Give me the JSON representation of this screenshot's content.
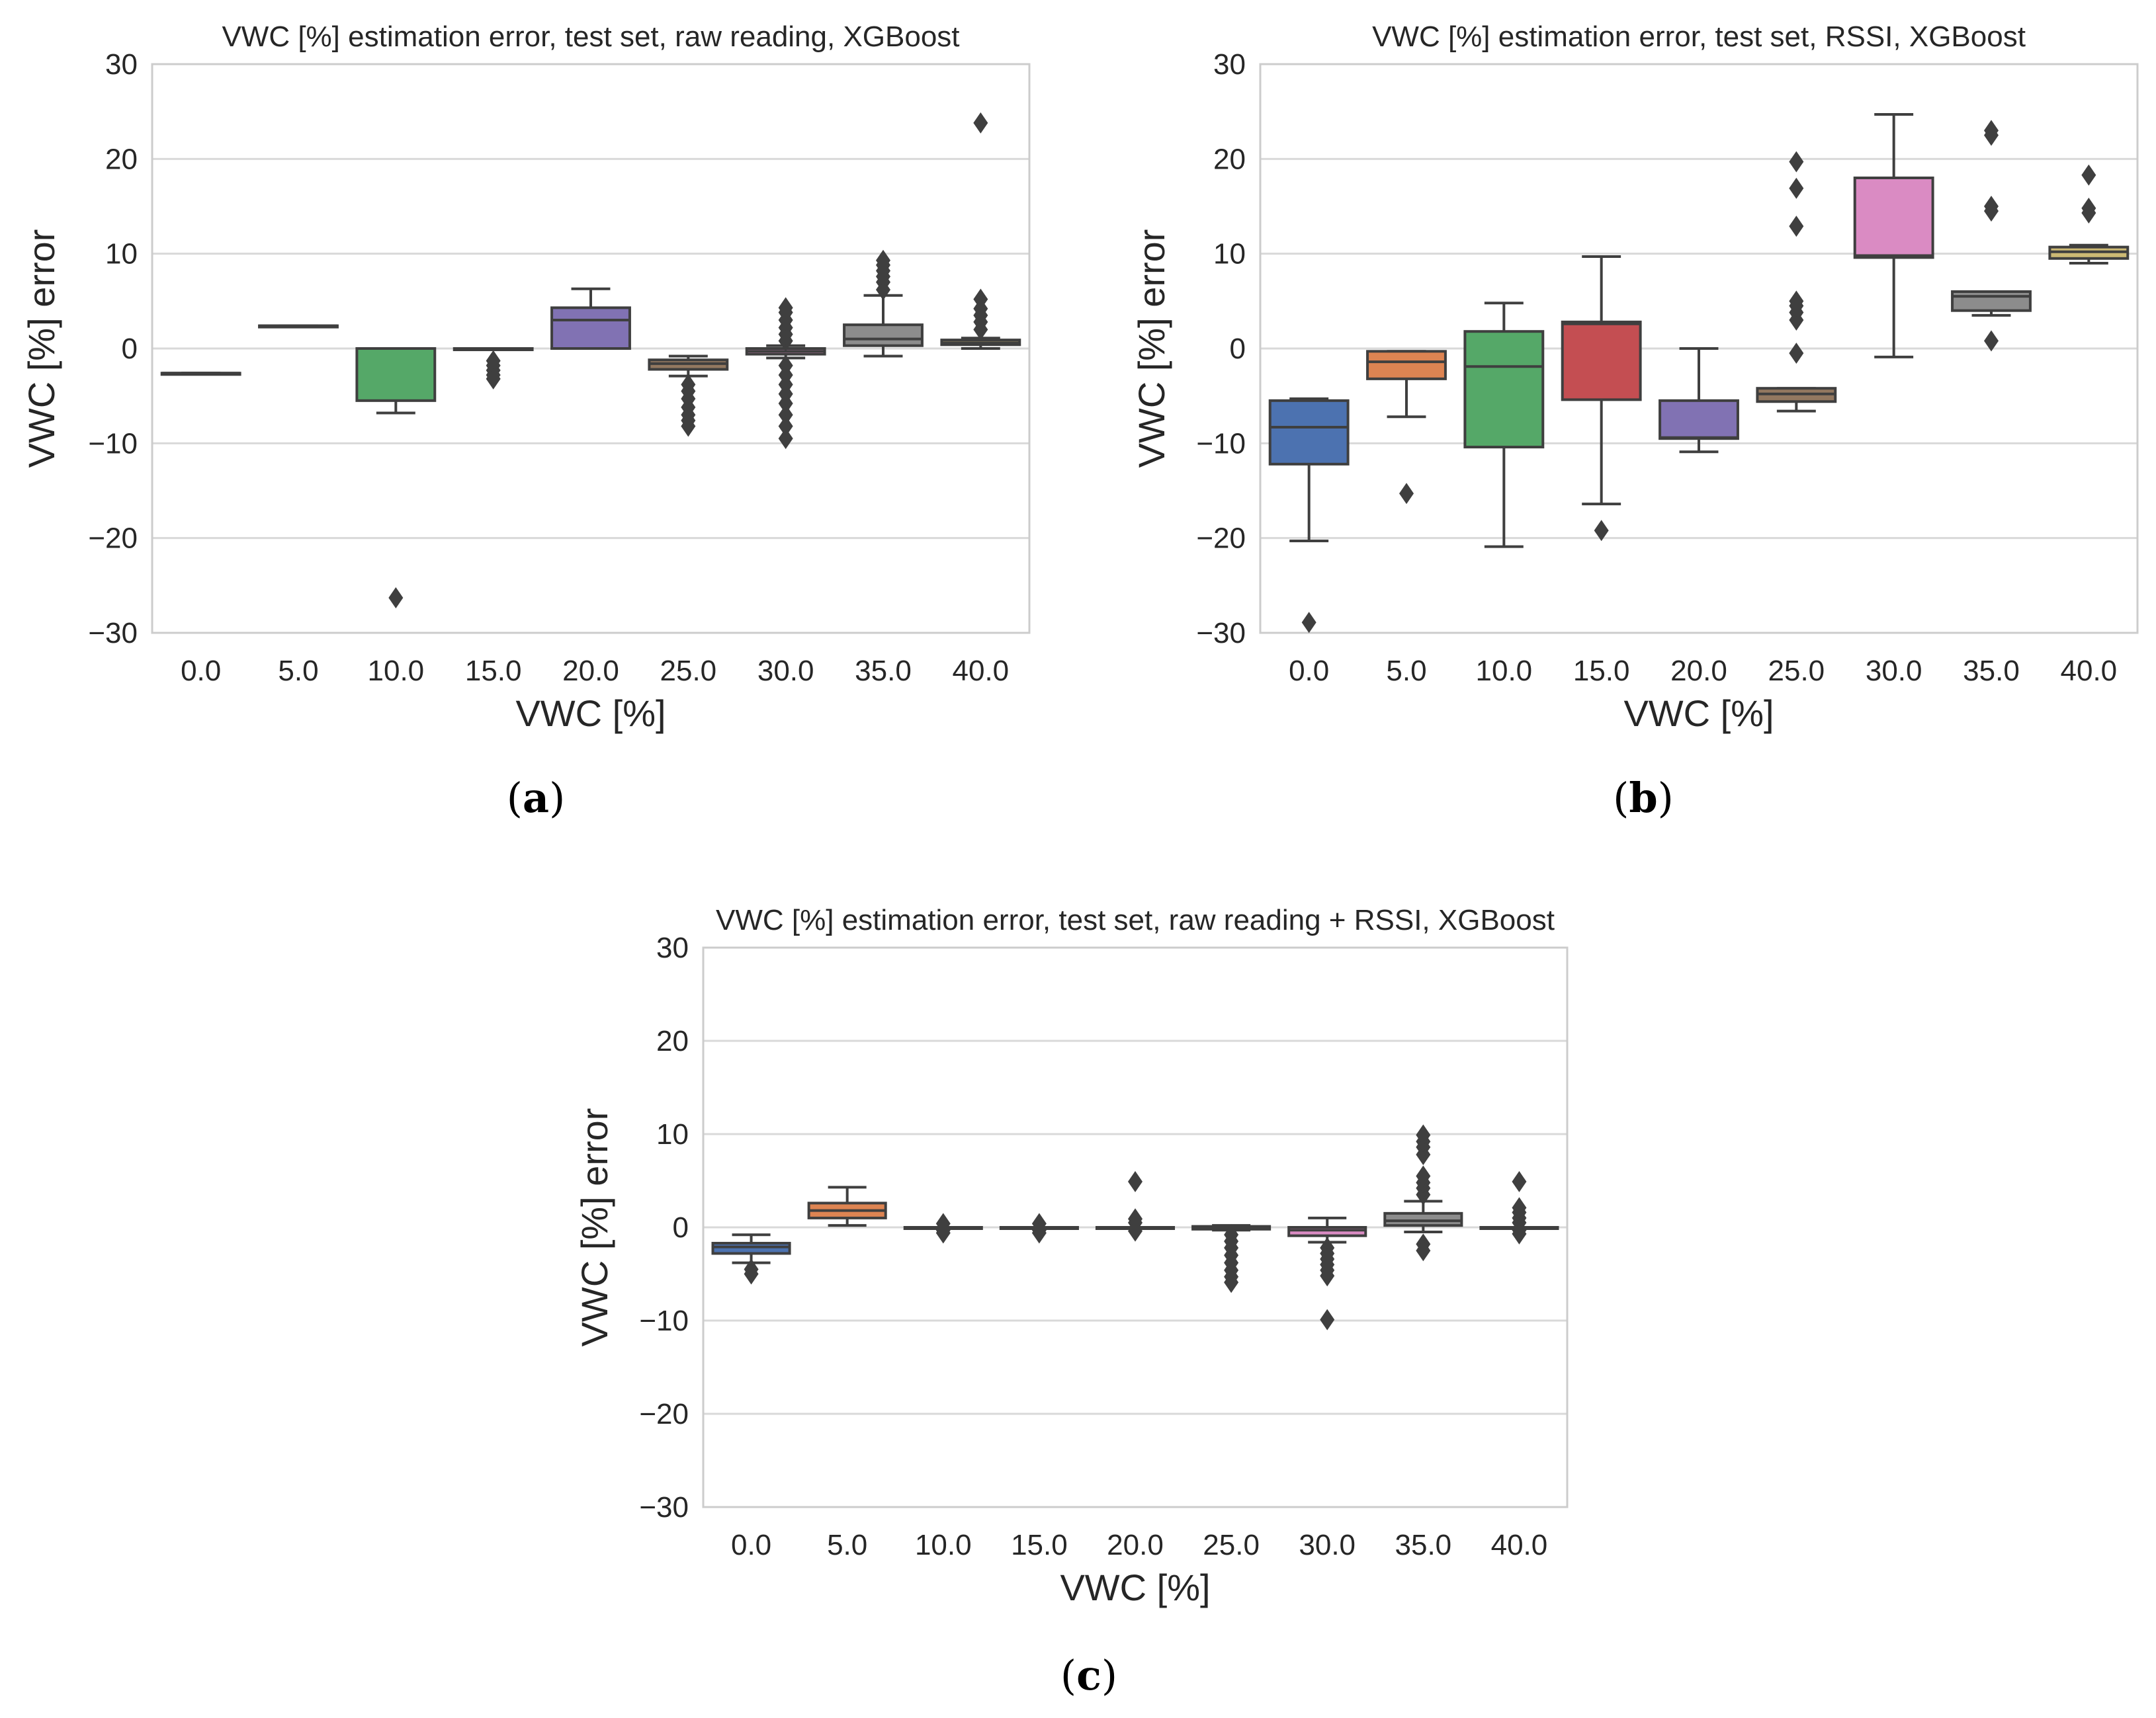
{
  "colors": {
    "palette": [
      "#4C72B0",
      "#DD8452",
      "#55A868",
      "#C44E52",
      "#8172B3",
      "#937860",
      "#DA8BC3",
      "#8C8C8C",
      "#CCB974"
    ],
    "line": "#3f3f3f",
    "grid": "#d9d9d9",
    "frame": "#cccccc"
  },
  "chart_data": [
    {
      "id": "a",
      "type": "box",
      "caption_letter": "a",
      "title": "VWC [%] estimation error, test set, raw reading, XGBoost",
      "xlabel": "VWC [%]",
      "ylabel": "VWC [%] error",
      "categories": [
        "0.0",
        "5.0",
        "10.0",
        "15.0",
        "20.0",
        "25.0",
        "30.0",
        "35.0",
        "40.0"
      ],
      "ylim": [
        -30,
        30
      ],
      "yticks": [
        "−30",
        "−20",
        "−10",
        "0",
        "10",
        "20",
        "30"
      ],
      "ytick_values": [
        -30,
        -20,
        -10,
        0,
        10,
        20,
        30
      ],
      "grid": true,
      "boxes": [
        {
          "lw": -2.6,
          "q1": -2.6,
          "med": -2.6,
          "q3": -2.6,
          "uw": -2.6,
          "outliers": []
        },
        {
          "lw": 2.4,
          "q1": 2.4,
          "med": 2.4,
          "q3": 2.4,
          "uw": 2.4,
          "outliers": []
        },
        {
          "lw": -6.8,
          "q1": -5.5,
          "med": 0.0,
          "q3": 0.0,
          "uw": 0.0,
          "outliers": [
            -26.3
          ]
        },
        {
          "lw": 0.0,
          "q1": 0.0,
          "med": 0.0,
          "q3": 0.0,
          "uw": 0.0,
          "outliers": [
            -1.3,
            -1.8,
            -2.3,
            -2.8,
            -3.2
          ]
        },
        {
          "lw": 0.0,
          "q1": 0.0,
          "med": 3.0,
          "q3": 4.3,
          "uw": 6.3,
          "outliers": []
        },
        {
          "lw": -2.9,
          "q1": -2.2,
          "med": -1.6,
          "q3": -1.2,
          "uw": -0.8,
          "outliers": [
            -3.8,
            -4.5,
            -5.3,
            -6.2,
            -7.0,
            -7.6,
            -8.2
          ]
        },
        {
          "lw": -1.0,
          "q1": -0.6,
          "med": -0.3,
          "q3": 0.0,
          "uw": 0.3,
          "outliers": [
            0.8,
            1.5,
            2.2,
            3.0,
            3.8,
            4.3,
            -1.8,
            -2.8,
            -3.8,
            -4.8,
            -5.8,
            -7.0,
            -8.2,
            -9.5
          ]
        },
        {
          "lw": -0.8,
          "q1": 0.3,
          "med": 1.0,
          "q3": 2.5,
          "uw": 5.6,
          "outliers": [
            6.2,
            7.0,
            7.6,
            8.2,
            8.8,
            9.3
          ]
        },
        {
          "lw": 0.0,
          "q1": 0.4,
          "med": 0.6,
          "q3": 0.9,
          "uw": 1.1,
          "outliers": [
            2.0,
            2.8,
            3.5,
            4.2,
            5.2,
            23.8
          ]
        }
      ]
    },
    {
      "id": "b",
      "type": "box",
      "caption_letter": "b",
      "title": "VWC [%] estimation error, test set, RSSI, XGBoost",
      "xlabel": "VWC [%]",
      "ylabel": "VWC [%] error",
      "categories": [
        "0.0",
        "5.0",
        "10.0",
        "15.0",
        "20.0",
        "25.0",
        "30.0",
        "35.0",
        "40.0"
      ],
      "ylim": [
        -30,
        30
      ],
      "yticks": [
        "−30",
        "−20",
        "−10",
        "0",
        "10",
        "20",
        "30"
      ],
      "ytick_values": [
        -30,
        -20,
        -10,
        0,
        10,
        20,
        30
      ],
      "grid": true,
      "boxes": [
        {
          "lw": -20.3,
          "q1": -12.2,
          "med": -8.3,
          "q3": -5.5,
          "uw": -5.3,
          "outliers": [
            -28.9
          ]
        },
        {
          "lw": -7.2,
          "q1": -3.2,
          "med": -1.4,
          "q3": -0.3,
          "uw": -0.3,
          "outliers": [
            -15.3
          ]
        },
        {
          "lw": -20.9,
          "q1": -10.4,
          "med": -1.9,
          "q3": 1.8,
          "uw": 4.8,
          "outliers": []
        },
        {
          "lw": -16.4,
          "q1": -5.4,
          "med": 2.6,
          "q3": 2.8,
          "uw": 9.7,
          "outliers": [
            -19.2
          ]
        },
        {
          "lw": -10.9,
          "q1": -9.5,
          "med": -9.4,
          "q3": -5.5,
          "uw": 0.0,
          "outliers": []
        },
        {
          "lw": -6.6,
          "q1": -5.6,
          "med": -4.8,
          "q3": -4.2,
          "uw": -4.2,
          "outliers": [
            -0.5,
            3.0,
            3.8,
            4.5,
            5.0,
            12.9,
            16.9,
            19.7
          ]
        },
        {
          "lw": -0.9,
          "q1": 9.6,
          "med": 9.8,
          "q3": 18.0,
          "uw": 24.7,
          "outliers": []
        },
        {
          "lw": 3.5,
          "q1": 4.0,
          "med": 5.5,
          "q3": 6.0,
          "uw": 6.0,
          "outliers": [
            0.8,
            14.5,
            15.0,
            22.5,
            23.0
          ]
        },
        {
          "lw": 9.0,
          "q1": 9.5,
          "med": 10.2,
          "q3": 10.7,
          "uw": 10.9,
          "outliers": [
            14.3,
            14.8,
            18.3
          ]
        }
      ]
    },
    {
      "id": "c",
      "type": "box",
      "caption_letter": "c",
      "title": "VWC [%] estimation error, test set, raw reading + RSSI, XGBoost",
      "xlabel": "VWC [%]",
      "ylabel": "VWC [%] error",
      "categories": [
        "0.0",
        "5.0",
        "10.0",
        "15.0",
        "20.0",
        "25.0",
        "30.0",
        "35.0",
        "40.0"
      ],
      "ylim": [
        -30,
        30
      ],
      "yticks": [
        "−30",
        "−20",
        "−10",
        "0",
        "10",
        "20",
        "30"
      ],
      "ytick_values": [
        -30,
        -20,
        -10,
        0,
        10,
        20,
        30
      ],
      "grid": true,
      "boxes": [
        {
          "lw": -3.8,
          "q1": -2.8,
          "med": -2.1,
          "q3": -1.7,
          "uw": -0.8,
          "outliers": [
            -4.5,
            -5.0
          ]
        },
        {
          "lw": 0.2,
          "q1": 1.0,
          "med": 1.8,
          "q3": 2.6,
          "uw": 4.3,
          "outliers": []
        },
        {
          "lw": 0.0,
          "q1": 0.0,
          "med": 0.0,
          "q3": 0.0,
          "uw": 0.0,
          "outliers": [
            0.4,
            -0.3,
            -0.6
          ]
        },
        {
          "lw": 0.0,
          "q1": 0.0,
          "med": 0.0,
          "q3": 0.0,
          "uw": 0.0,
          "outliers": [
            0.4,
            -0.3,
            -0.6
          ]
        },
        {
          "lw": 0.0,
          "q1": 0.0,
          "med": 0.0,
          "q3": 0.0,
          "uw": 0.0,
          "outliers": [
            0.5,
            0.9,
            -0.4,
            4.9
          ]
        },
        {
          "lw": -0.3,
          "q1": -0.2,
          "med": -0.1,
          "q3": 0.1,
          "uw": 0.2,
          "outliers": [
            -0.8,
            -1.5,
            -2.2,
            -3.0,
            -3.8,
            -4.6,
            -5.3,
            -5.9
          ]
        },
        {
          "lw": -1.6,
          "q1": -0.9,
          "med": -0.3,
          "q3": 0.0,
          "uw": 1.0,
          "outliers": [
            -2.2,
            -2.8,
            -3.4,
            -4.0,
            -4.6,
            -5.2,
            -9.9
          ]
        },
        {
          "lw": -0.5,
          "q1": 0.2,
          "med": 0.7,
          "q3": 1.5,
          "uw": 2.8,
          "outliers": [
            3.5,
            4.2,
            4.8,
            5.5,
            7.8,
            8.6,
            9.2,
            9.9,
            -1.8,
            -2.5
          ]
        },
        {
          "lw": 0.0,
          "q1": 0.0,
          "med": 0.0,
          "q3": 0.0,
          "uw": 0.0,
          "outliers": [
            0.5,
            1.0,
            1.6,
            2.1,
            -0.3,
            -0.7,
            4.9
          ]
        }
      ]
    }
  ]
}
